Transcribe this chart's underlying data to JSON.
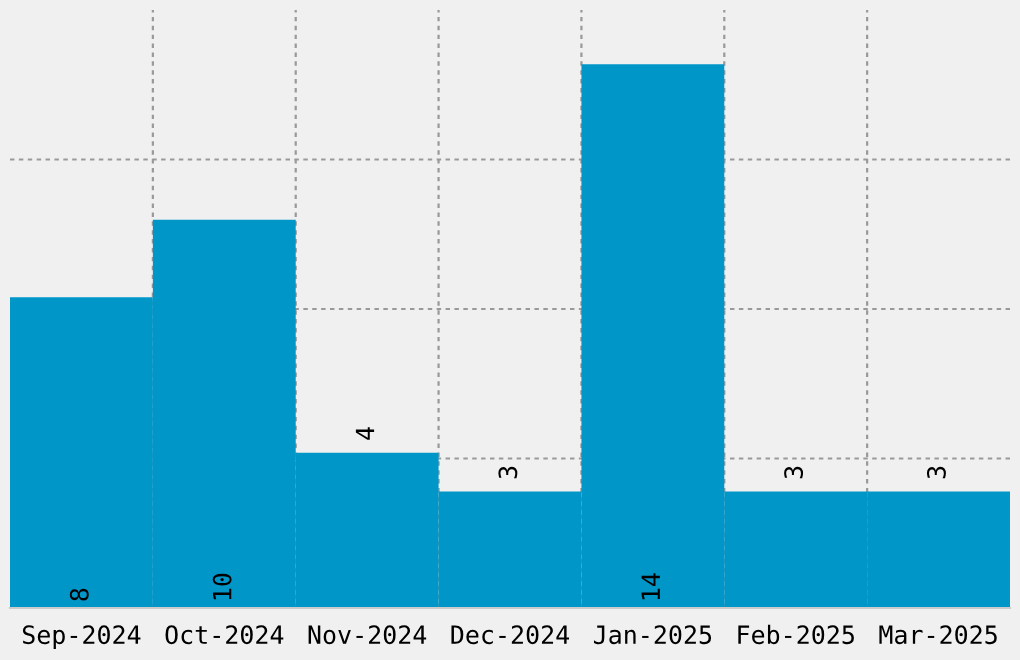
{
  "chart_data": {
    "type": "bar",
    "categories": [
      "Sep-2024",
      "Oct-2024",
      "Nov-2024",
      "Dec-2024",
      "Jan-2025",
      "Feb-2025",
      "Mar-2025"
    ],
    "values": [
      8,
      10,
      4,
      3,
      14,
      3,
      3
    ],
    "color": "#0096c8",
    "data_labels": true,
    "tick_labels": "x",
    "grid": true,
    "ylim": [
      0,
      15.4
    ],
    "yticks": [
      {
        "value": 3.85,
        "label": null
      },
      {
        "value": 7.7,
        "label": null
      },
      {
        "value": 11.55,
        "label": null
      }
    ]
  }
}
